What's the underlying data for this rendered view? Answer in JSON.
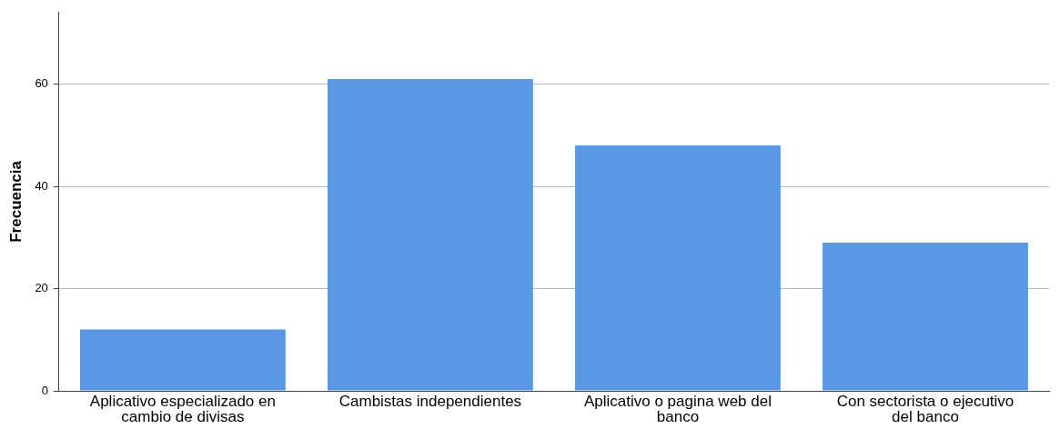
{
  "chart_data": {
    "type": "bar",
    "ylabel": "Frecuencia",
    "categories": [
      "Aplicativo especializado en cambio de divisas",
      "Cambistas independientes",
      "Aplicativo o pagina web del banco",
      "Con sectorista o ejecutivo del banco"
    ],
    "values": [
      12,
      61,
      48,
      29
    ],
    "color": "#5797e4",
    "ylim": [
      0,
      74
    ],
    "yticks": [
      0,
      20,
      40,
      60
    ],
    "grid": "y"
  }
}
